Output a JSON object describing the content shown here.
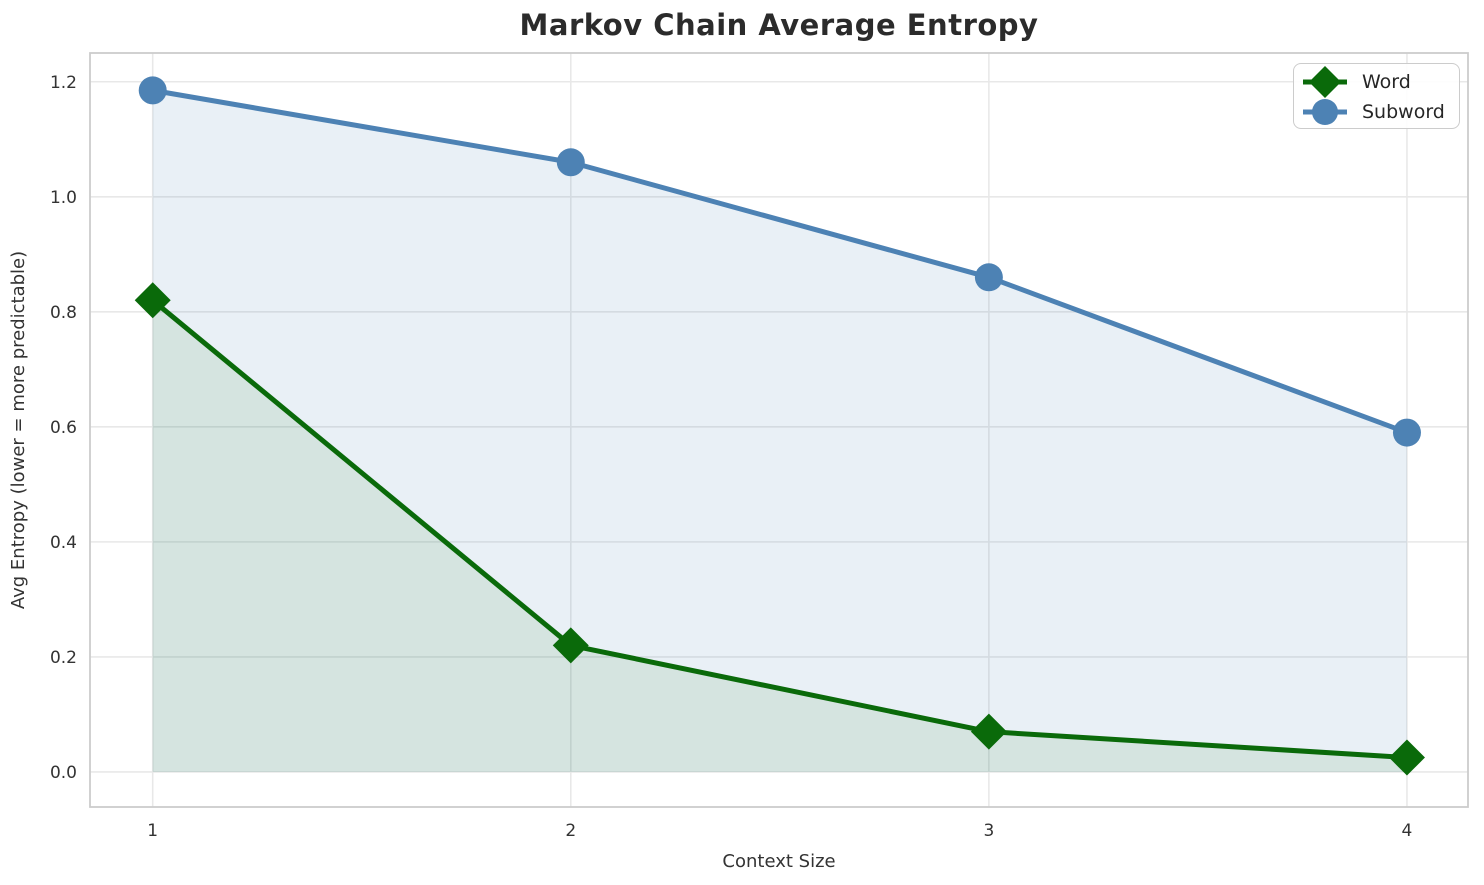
{
  "chart_data": {
    "type": "line",
    "title": "Markov Chain Average Entropy",
    "xlabel": "Context Size",
    "ylabel": "Avg Entropy (lower = more predictable)",
    "x": [
      1,
      2,
      3,
      4
    ],
    "series": [
      {
        "name": "Word",
        "values": [
          0.82,
          0.22,
          0.07,
          0.025
        ],
        "color": "#0a6a0a",
        "marker": "diamond",
        "fill_to_zero": true,
        "fill_opacity": 0.09
      },
      {
        "name": "Subword",
        "values": [
          1.185,
          1.06,
          0.86,
          0.59
        ],
        "color": "#4d82b4",
        "marker": "circle",
        "fill_to_zero": true,
        "fill_opacity": 0.12
      }
    ],
    "xticks": {
      "values": [
        1,
        2,
        3,
        4
      ],
      "labels": [
        "1",
        "2",
        "3",
        "4"
      ]
    },
    "yticks": {
      "values": [
        0.0,
        0.2,
        0.4,
        0.6,
        0.8,
        1.0,
        1.2
      ],
      "labels": [
        "0.0",
        "0.2",
        "0.4",
        "0.6",
        "0.8",
        "1.0",
        "1.2"
      ]
    },
    "xlim": [
      0.85,
      4.146
    ],
    "ylim": [
      -0.061,
      1.25
    ],
    "grid": true,
    "grid_color": "#e8e8e8",
    "spine_color": "#cccccc",
    "legend": {
      "position": "upper right",
      "entries": [
        "Word",
        "Subword"
      ]
    }
  }
}
